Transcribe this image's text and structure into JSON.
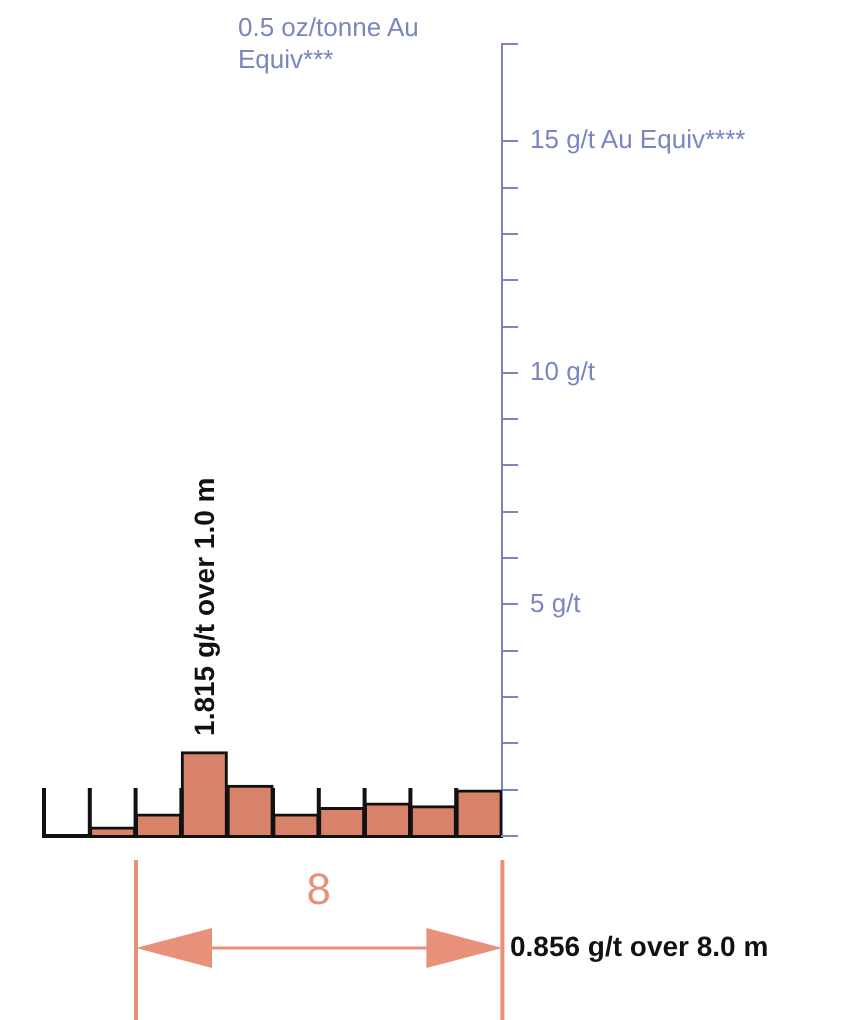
{
  "chart_data": {
    "type": "bar",
    "categories": [
      null,
      null,
      null,
      null,
      null,
      null,
      null,
      null,
      null,
      null
    ],
    "series": [
      {
        "color": "#d9826a",
        "values": [
          null,
          0.19,
          0.47,
          1.815,
          1.09,
          0.47,
          0.61,
          0.71,
          0.65,
          0.99
        ]
      }
    ],
    "ylim": [
      0,
      17.1
    ],
    "yticks": [
      {
        "value": 0,
        "label": null
      },
      {
        "value": 1,
        "label": null
      },
      {
        "value": 2,
        "label": null
      },
      {
        "value": 3,
        "label": null
      },
      {
        "value": 4,
        "label": null
      },
      {
        "value": 5,
        "label": "5 g/t"
      },
      {
        "value": 6,
        "label": null
      },
      {
        "value": 7,
        "label": null
      },
      {
        "value": 8,
        "label": null
      },
      {
        "value": 9,
        "label": null
      },
      {
        "value": 10,
        "label": "10 g/t"
      },
      {
        "value": 11,
        "label": null
      },
      {
        "value": 12,
        "label": null
      },
      {
        "value": 13,
        "label": null
      },
      {
        "value": 14,
        "label": null
      },
      {
        "value": 15,
        "label": "15 g/t Au Equiv****"
      },
      {
        "value": 17.1,
        "label": null
      }
    ],
    "grid": false,
    "legend": false,
    "tick_labels": "y",
    "annotations": [
      {
        "text": "1.815 g/t over 1.0 m",
        "y": 1.815
      },
      "0.5 oz/tonne Au Equiv***",
      "8",
      "0.856 g/t over 8.0 m"
    ]
  }
}
